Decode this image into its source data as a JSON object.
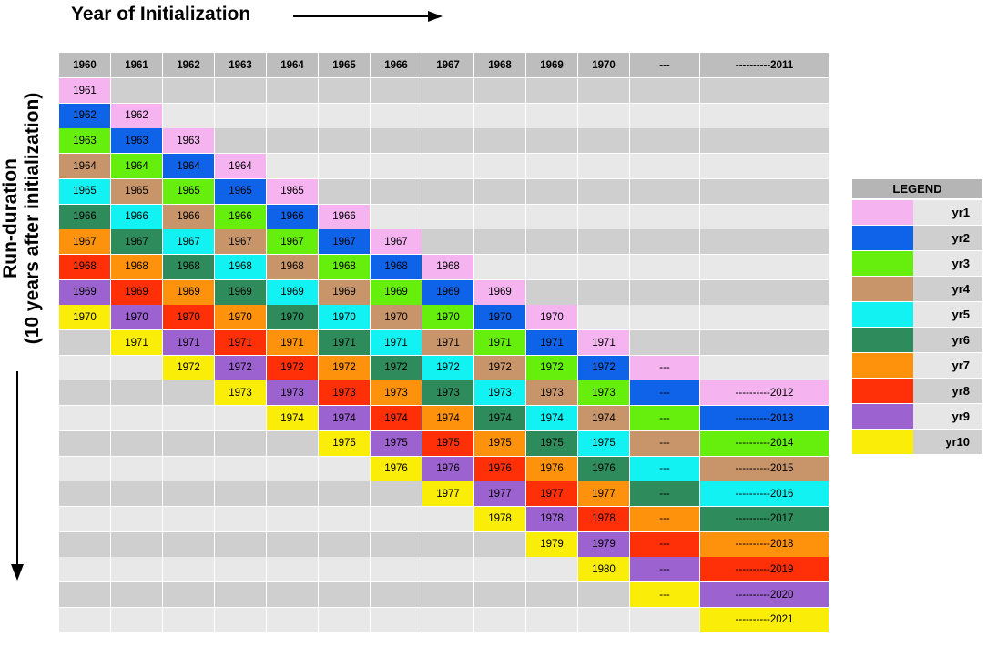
{
  "x_axis_title": "Year of Initialization",
  "y_axis_title": [
    "Run-duration",
    "(10 years after initialization)"
  ],
  "legend": {
    "title": "LEGEND",
    "items": [
      {
        "label": "yr1",
        "color": "#f5b3f0"
      },
      {
        "label": "yr2",
        "color": "#0f63e8"
      },
      {
        "label": "yr3",
        "color": "#66ee0c"
      },
      {
        "label": "yr4",
        "color": "#c8956a"
      },
      {
        "label": "yr5",
        "color": "#12f2f2"
      },
      {
        "label": "yr6",
        "color": "#2e8c5c"
      },
      {
        "label": "yr7",
        "color": "#ff920d"
      },
      {
        "label": "yr8",
        "color": "#ff3008"
      },
      {
        "label": "yr9",
        "color": "#9c62cf"
      },
      {
        "label": "yr10",
        "color": "#faed07"
      }
    ]
  },
  "table": {
    "columns": [
      "1960",
      "1961",
      "1962",
      "1963",
      "1964",
      "1965",
      "1966",
      "1967",
      "1968",
      "1969",
      "1970",
      "---",
      "----------2011"
    ],
    "colors": {
      "header": "#bdbdbd",
      "row_dark": "#cfcfcf",
      "row_light": "#e8e8e8"
    },
    "rows": [
      [
        {
          "t": "1961",
          "c": 1
        },
        null,
        null,
        null,
        null,
        null,
        null,
        null,
        null,
        null,
        null,
        null,
        null
      ],
      [
        {
          "t": "1962",
          "c": 2
        },
        {
          "t": "1962",
          "c": 1
        },
        null,
        null,
        null,
        null,
        null,
        null,
        null,
        null,
        null,
        null,
        null
      ],
      [
        {
          "t": "1963",
          "c": 3
        },
        {
          "t": "1963",
          "c": 2
        },
        {
          "t": "1963",
          "c": 1
        },
        null,
        null,
        null,
        null,
        null,
        null,
        null,
        null,
        null,
        null
      ],
      [
        {
          "t": "1964",
          "c": 4
        },
        {
          "t": "1964",
          "c": 3
        },
        {
          "t": "1964",
          "c": 2
        },
        {
          "t": "1964",
          "c": 1
        },
        null,
        null,
        null,
        null,
        null,
        null,
        null,
        null,
        null
      ],
      [
        {
          "t": "1965",
          "c": 5
        },
        {
          "t": "1965",
          "c": 4
        },
        {
          "t": "1965",
          "c": 3
        },
        {
          "t": "1965",
          "c": 2
        },
        {
          "t": "1965",
          "c": 1
        },
        null,
        null,
        null,
        null,
        null,
        null,
        null,
        null
      ],
      [
        {
          "t": "1966",
          "c": 6
        },
        {
          "t": "1966",
          "c": 5
        },
        {
          "t": "1966",
          "c": 4
        },
        {
          "t": "1966",
          "c": 3
        },
        {
          "t": "1966",
          "c": 2
        },
        {
          "t": "1966",
          "c": 1
        },
        null,
        null,
        null,
        null,
        null,
        null,
        null
      ],
      [
        {
          "t": "1967",
          "c": 7
        },
        {
          "t": "1967",
          "c": 6
        },
        {
          "t": "1967",
          "c": 5
        },
        {
          "t": "1967",
          "c": 4
        },
        {
          "t": "1967",
          "c": 3
        },
        {
          "t": "1967",
          "c": 2
        },
        {
          "t": "1967",
          "c": 1
        },
        null,
        null,
        null,
        null,
        null,
        null
      ],
      [
        {
          "t": "1968",
          "c": 8
        },
        {
          "t": "1968",
          "c": 7
        },
        {
          "t": "1968",
          "c": 6
        },
        {
          "t": "1968",
          "c": 5
        },
        {
          "t": "1968",
          "c": 4
        },
        {
          "t": "1968",
          "c": 3
        },
        {
          "t": "1968",
          "c": 2
        },
        {
          "t": "1968",
          "c": 1
        },
        null,
        null,
        null,
        null,
        null
      ],
      [
        {
          "t": "1969",
          "c": 9
        },
        {
          "t": "1969",
          "c": 8
        },
        {
          "t": "1969",
          "c": 7
        },
        {
          "t": "1969",
          "c": 6
        },
        {
          "t": "1969",
          "c": 5
        },
        {
          "t": "1969",
          "c": 4
        },
        {
          "t": "1969",
          "c": 3
        },
        {
          "t": "1969",
          "c": 2
        },
        {
          "t": "1969",
          "c": 1
        },
        null,
        null,
        null,
        null
      ],
      [
        {
          "t": "1970",
          "c": 10
        },
        {
          "t": "1970",
          "c": 9
        },
        {
          "t": "1970",
          "c": 8
        },
        {
          "t": "1970",
          "c": 7
        },
        {
          "t": "1970",
          "c": 6
        },
        {
          "t": "1970",
          "c": 5
        },
        {
          "t": "1970",
          "c": 4
        },
        {
          "t": "1970",
          "c": 3
        },
        {
          "t": "1970",
          "c": 2
        },
        {
          "t": "1970",
          "c": 1
        },
        null,
        null,
        null
      ],
      [
        null,
        {
          "t": "1971",
          "c": 10
        },
        {
          "t": "1971",
          "c": 9
        },
        {
          "t": "1971",
          "c": 8
        },
        {
          "t": "1971",
          "c": 7
        },
        {
          "t": "1971",
          "c": 6
        },
        {
          "t": "1971",
          "c": 5
        },
        {
          "t": "1971",
          "c": 4
        },
        {
          "t": "1971",
          "c": 3
        },
        {
          "t": "1971",
          "c": 2
        },
        {
          "t": "1971",
          "c": 1
        },
        null,
        null
      ],
      [
        null,
        null,
        {
          "t": "1972",
          "c": 10
        },
        {
          "t": "1972",
          "c": 9
        },
        {
          "t": "1972",
          "c": 8
        },
        {
          "t": "1972",
          "c": 7
        },
        {
          "t": "1972",
          "c": 6
        },
        {
          "t": "1972",
          "c": 5
        },
        {
          "t": "1972",
          "c": 4
        },
        {
          "t": "1972",
          "c": 3
        },
        {
          "t": "1972",
          "c": 2
        },
        {
          "t": "---",
          "c": 1
        },
        null
      ],
      [
        null,
        null,
        null,
        {
          "t": "1973",
          "c": 10
        },
        {
          "t": "1973",
          "c": 9
        },
        {
          "t": "1973",
          "c": 8
        },
        {
          "t": "1973",
          "c": 7
        },
        {
          "t": "1973",
          "c": 6
        },
        {
          "t": "1973",
          "c": 5
        },
        {
          "t": "1973",
          "c": 4
        },
        {
          "t": "1973",
          "c": 3
        },
        {
          "t": "---",
          "c": 2
        },
        {
          "t": "----------2012",
          "c": 1
        }
      ],
      [
        null,
        null,
        null,
        null,
        {
          "t": "1974",
          "c": 10
        },
        {
          "t": "1974",
          "c": 9
        },
        {
          "t": "1974",
          "c": 8
        },
        {
          "t": "1974",
          "c": 7
        },
        {
          "t": "1974",
          "c": 6
        },
        {
          "t": "1974",
          "c": 5
        },
        {
          "t": "1974",
          "c": 4
        },
        {
          "t": "---",
          "c": 3
        },
        {
          "t": "----------2013",
          "c": 2
        }
      ],
      [
        null,
        null,
        null,
        null,
        null,
        {
          "t": "1975",
          "c": 10
        },
        {
          "t": "1975",
          "c": 9
        },
        {
          "t": "1975",
          "c": 8
        },
        {
          "t": "1975",
          "c": 7
        },
        {
          "t": "1975",
          "c": 6
        },
        {
          "t": "1975",
          "c": 5
        },
        {
          "t": "---",
          "c": 4
        },
        {
          "t": "----------2014",
          "c": 3
        }
      ],
      [
        null,
        null,
        null,
        null,
        null,
        null,
        {
          "t": "1976",
          "c": 10
        },
        {
          "t": "1976",
          "c": 9
        },
        {
          "t": "1976",
          "c": 8
        },
        {
          "t": "1976",
          "c": 7
        },
        {
          "t": "1976",
          "c": 6
        },
        {
          "t": "---",
          "c": 5
        },
        {
          "t": "----------2015",
          "c": 4
        }
      ],
      [
        null,
        null,
        null,
        null,
        null,
        null,
        null,
        {
          "t": "1977",
          "c": 10
        },
        {
          "t": "1977",
          "c": 9
        },
        {
          "t": "1977",
          "c": 8
        },
        {
          "t": "1977",
          "c": 7
        },
        {
          "t": "---",
          "c": 6
        },
        {
          "t": "----------2016",
          "c": 5
        }
      ],
      [
        null,
        null,
        null,
        null,
        null,
        null,
        null,
        null,
        {
          "t": "1978",
          "c": 10
        },
        {
          "t": "1978",
          "c": 9
        },
        {
          "t": "1978",
          "c": 8
        },
        {
          "t": "---",
          "c": 7
        },
        {
          "t": "----------2017",
          "c": 6
        }
      ],
      [
        null,
        null,
        null,
        null,
        null,
        null,
        null,
        null,
        null,
        {
          "t": "1979",
          "c": 10
        },
        {
          "t": "1979",
          "c": 9
        },
        {
          "t": "---",
          "c": 8
        },
        {
          "t": "----------2018",
          "c": 7
        }
      ],
      [
        null,
        null,
        null,
        null,
        null,
        null,
        null,
        null,
        null,
        null,
        {
          "t": "1980",
          "c": 10
        },
        {
          "t": "---",
          "c": 9
        },
        {
          "t": "----------2019",
          "c": 8
        }
      ],
      [
        null,
        null,
        null,
        null,
        null,
        null,
        null,
        null,
        null,
        null,
        null,
        {
          "t": "---",
          "c": 10
        },
        {
          "t": "----------2020",
          "c": 9
        }
      ],
      [
        null,
        null,
        null,
        null,
        null,
        null,
        null,
        null,
        null,
        null,
        null,
        null,
        {
          "t": "----------2021",
          "c": 10
        }
      ]
    ]
  }
}
